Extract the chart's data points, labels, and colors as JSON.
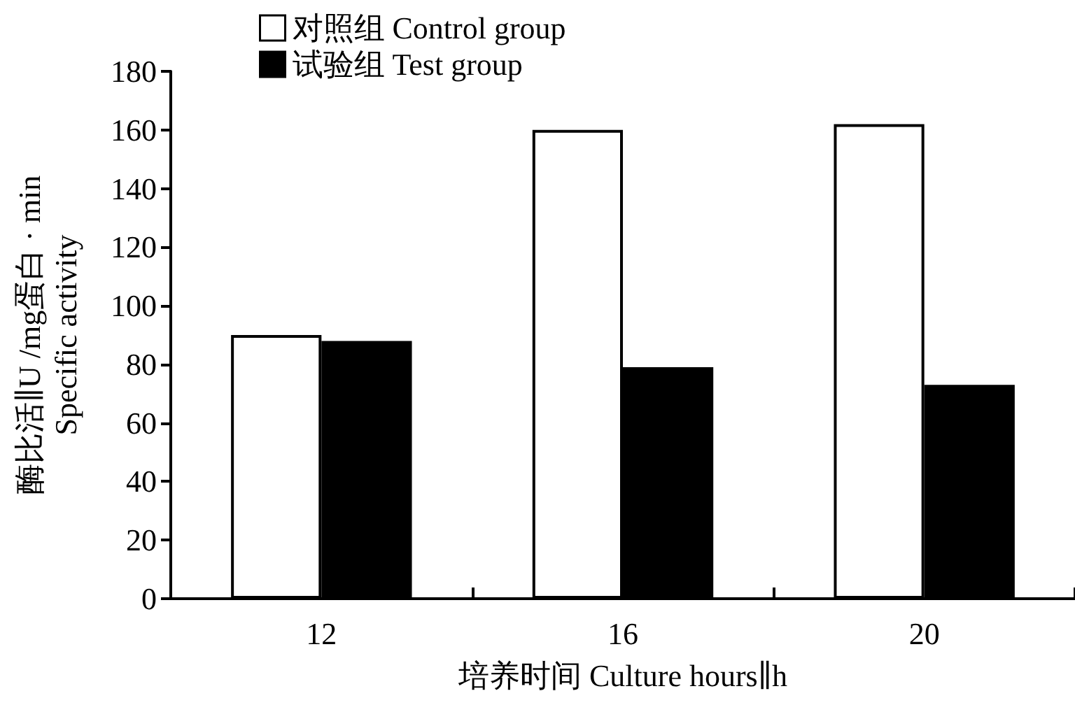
{
  "chart_data": {
    "type": "bar",
    "xlabel": "培养时间 Culture hours∥h",
    "ylabel": "酶比活∥U /mg蛋白 · min\nSpecific activity",
    "categories": [
      "12",
      "16",
      "20"
    ],
    "series": [
      {
        "name": "对照组 Control group",
        "color": "#ffffff",
        "values": [
          90,
          160,
          162
        ]
      },
      {
        "name": "试验组 Test group",
        "color": "#000000",
        "values": [
          88,
          79,
          73
        ]
      }
    ],
    "ylim": [
      0,
      180
    ],
    "yticks": [
      0,
      20,
      40,
      60,
      80,
      100,
      120,
      140,
      160,
      180
    ],
    "grid": false,
    "legend": "top left"
  }
}
